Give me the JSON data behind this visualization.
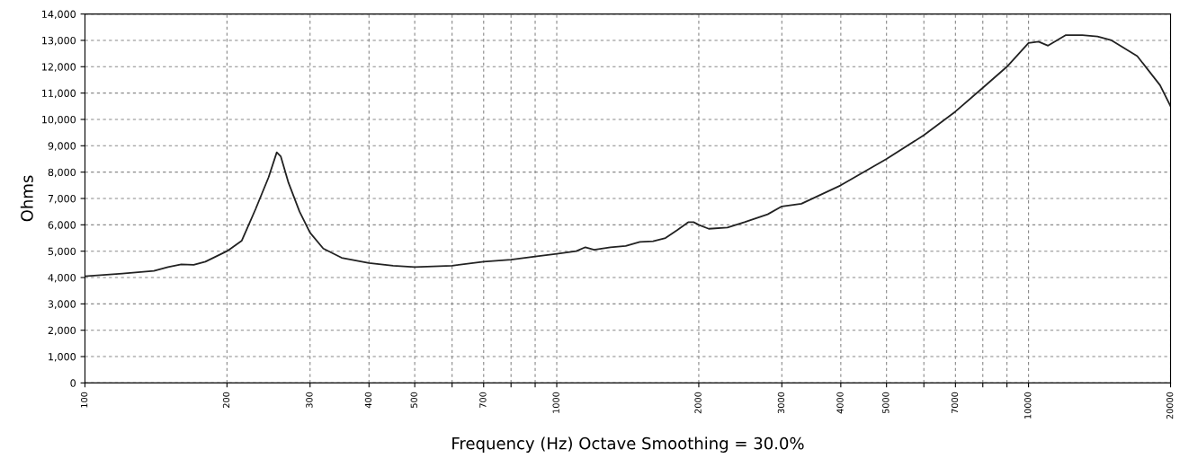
{
  "chart_data": {
    "type": "line",
    "xlabel": "Frequency (Hz) Octave Smoothing = 30.0%",
    "ylabel": "Ohms",
    "log": "x",
    "grid": true,
    "marker": "none",
    "line_style": "solid",
    "x": [
      100,
      120,
      140,
      150,
      160,
      170,
      180,
      200,
      215,
      230,
      245,
      255,
      260,
      270,
      285,
      300,
      320,
      350,
      400,
      450,
      500,
      600,
      700,
      800,
      900,
      1000,
      1100,
      1150,
      1200,
      1300,
      1400,
      1500,
      1600,
      1700,
      1800,
      1900,
      1950,
      2000,
      2100,
      2300,
      2500,
      2800,
      3000,
      3300,
      4000,
      5000,
      6000,
      7000,
      8000,
      9000,
      10000,
      10500,
      11000,
      12000,
      13000,
      14000,
      15000,
      17000,
      19000,
      20000
    ],
    "series": [
      {
        "color": "#222222",
        "values": [
          4050,
          4150,
          4250,
          4400,
          4500,
          4480,
          4600,
          5000,
          5400,
          6600,
          7800,
          8750,
          8600,
          7600,
          6500,
          5700,
          5100,
          4750,
          4550,
          4450,
          4400,
          4450,
          4600,
          4680,
          4800,
          4900,
          5000,
          5150,
          5050,
          5150,
          5200,
          5350,
          5380,
          5500,
          5800,
          6100,
          6100,
          6000,
          5850,
          5900,
          6100,
          6400,
          6700,
          6800,
          7500,
          8500,
          9400,
          10300,
          11200,
          12000,
          12900,
          12950,
          12800,
          13200,
          13200,
          13150,
          13000,
          12400,
          11300,
          10500
        ]
      }
    ],
    "xlim": [
      100,
      20000
    ],
    "ylim": [
      0,
      14000
    ],
    "xticks": [
      100,
      200,
      300,
      400,
      500,
      {
        "value": 600,
        "label": null
      },
      700,
      {
        "value": 800,
        "label": null
      },
      {
        "value": 900,
        "label": null
      },
      1000,
      2000,
      3000,
      4000,
      5000,
      {
        "value": 6000,
        "label": null
      },
      7000,
      {
        "value": 8000,
        "label": null
      },
      {
        "value": 9000,
        "label": null
      },
      10000,
      20000
    ],
    "yticks": [
      0,
      {
        "value": 1000,
        "label": "1,000"
      },
      {
        "value": 2000,
        "label": "2,000"
      },
      {
        "value": 3000,
        "label": "3,000"
      },
      {
        "value": 4000,
        "label": "4,000"
      },
      {
        "value": 5000,
        "label": "5,000"
      },
      {
        "value": 6000,
        "label": "6,000"
      },
      {
        "value": 7000,
        "label": "7,000"
      },
      {
        "value": 8000,
        "label": "8,000"
      },
      {
        "value": 9000,
        "label": "9,000"
      },
      {
        "value": 10000,
        "label": "10,000"
      },
      {
        "value": 11000,
        "label": "11,000"
      },
      {
        "value": 12000,
        "label": "12,000"
      },
      {
        "value": 13000,
        "label": "13,000"
      },
      {
        "value": 14000,
        "label": "14,000"
      }
    ]
  }
}
